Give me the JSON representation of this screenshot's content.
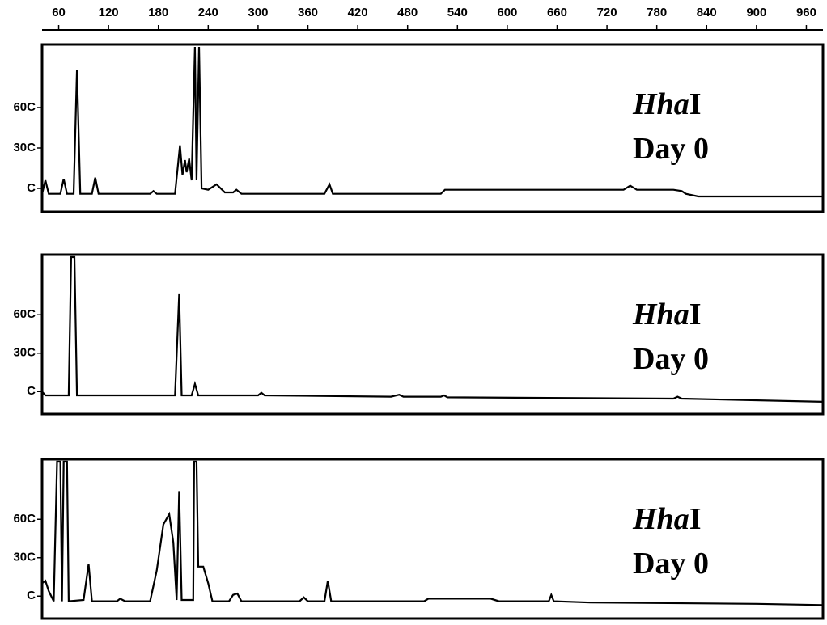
{
  "chart_data": [
    {
      "type": "line",
      "color": "#000000",
      "annotation": [
        "Hha",
        "I",
        "Day 0"
      ],
      "xlim": [
        40,
        980
      ],
      "xticks": [
        60,
        120,
        180,
        240,
        300,
        360,
        420,
        480,
        540,
        600,
        660,
        720,
        780,
        840,
        900,
        960
      ],
      "ylim": [
        -150,
        1050
      ],
      "yticks": [
        {
          "value": 0,
          "label": "C"
        },
        {
          "value": 300,
          "label": "30C"
        },
        {
          "value": 600,
          "label": "60C"
        }
      ],
      "x": [
        40,
        44,
        48,
        62,
        66,
        70,
        78,
        82,
        86,
        100,
        104,
        108,
        170,
        174,
        178,
        200,
        206,
        209,
        212,
        214,
        217,
        220,
        224,
        226,
        229,
        232,
        240,
        250,
        260,
        270,
        274,
        280,
        380,
        386,
        390,
        480,
        520,
        525,
        740,
        748,
        756,
        800,
        810,
        815,
        830,
        980
      ],
      "values": [
        -40,
        60,
        -40,
        -40,
        70,
        -40,
        -40,
        880,
        -40,
        -40,
        80,
        -40,
        -40,
        -20,
        -40,
        -40,
        320,
        100,
        210,
        120,
        220,
        60,
        1050,
        60,
        1050,
        0,
        -10,
        30,
        -30,
        -30,
        -10,
        -40,
        -40,
        30,
        -40,
        -40,
        -40,
        -10,
        -10,
        20,
        -10,
        -10,
        -20,
        -40,
        -60,
        -60
      ]
    },
    {
      "type": "line",
      "color": "#000000",
      "annotation": [
        "Hha",
        "I",
        "Day 0"
      ],
      "xlim": [
        40,
        980
      ],
      "ylim": [
        -150,
        1050
      ],
      "yticks": [
        {
          "value": 0,
          "label": "C"
        },
        {
          "value": 300,
          "label": "30C"
        },
        {
          "value": 600,
          "label": "60C"
        }
      ],
      "x": [
        40,
        44,
        72,
        75,
        79,
        82,
        200,
        205,
        208,
        220,
        224,
        228,
        300,
        304,
        308,
        460,
        470,
        475,
        520,
        524,
        528,
        800,
        805,
        810,
        980
      ],
      "values": [
        0,
        -30,
        -30,
        1050,
        1050,
        -30,
        -30,
        760,
        -30,
        -30,
        60,
        -30,
        -30,
        -10,
        -30,
        -40,
        -25,
        -40,
        -40,
        -30,
        -45,
        -55,
        -40,
        -55,
        -80
      ]
    },
    {
      "type": "line",
      "color": "#000000",
      "annotation": [
        "Hha",
        "I",
        "Day 0"
      ],
      "xlim": [
        40,
        980
      ],
      "ylim": [
        -150,
        1050
      ],
      "yticks": [
        {
          "value": 0,
          "label": "C"
        },
        {
          "value": 300,
          "label": "30C"
        },
        {
          "value": 600,
          "label": "60C"
        }
      ],
      "x": [
        40,
        44,
        48,
        54,
        58,
        62,
        64,
        66,
        70,
        72,
        90,
        96,
        100,
        130,
        134,
        140,
        170,
        178,
        186,
        193,
        198,
        202,
        205,
        208,
        222,
        223,
        226,
        228,
        234,
        240,
        245,
        265,
        270,
        275,
        280,
        350,
        355,
        360,
        380,
        384,
        388,
        500,
        505,
        580,
        590,
        650,
        653,
        656,
        700,
        900,
        980
      ],
      "values": [
        100,
        120,
        40,
        -40,
        1050,
        1050,
        -40,
        1050,
        1050,
        -40,
        -30,
        250,
        -40,
        -40,
        -20,
        -40,
        -40,
        200,
        560,
        640,
        420,
        -30,
        820,
        -30,
        -30,
        1050,
        1050,
        230,
        230,
        100,
        -40,
        -40,
        10,
        20,
        -40,
        -40,
        -10,
        -40,
        -40,
        120,
        -40,
        -40,
        -20,
        -20,
        -40,
        -40,
        10,
        -40,
        -50,
        -60,
        -70
      ]
    }
  ]
}
